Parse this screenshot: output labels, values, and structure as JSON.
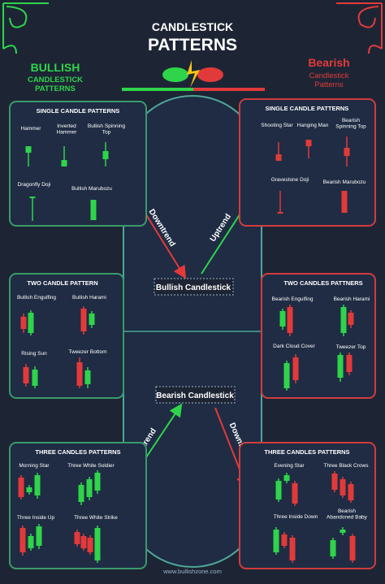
{
  "header": {
    "title_line1": "CANDLESTICK",
    "title_line2": "PATTERNS",
    "bullish": {
      "title": "BULLISH",
      "subtitle": "CANDLESTICK PATTERNS"
    },
    "bearish": {
      "title": "Bearish",
      "subtitle": "Candlestick Patterns"
    }
  },
  "center": {
    "upper": {
      "left_arrow": "Downtrend",
      "right_arrow": "Uptrend",
      "box": "Bullish Candlestick"
    },
    "lower": {
      "left_arrow": "Uptrend",
      "right_arrow": "Downtrend",
      "box": "Bearish Candlestick"
    }
  },
  "panels": [
    {
      "title": "SINGLE CANDLE PATTERNS",
      "items": [
        "Hammer",
        "Inverted Hammer",
        "Bullish Spinning Top",
        "Dragonfly Doji",
        "Bullish Marubozu"
      ]
    },
    {
      "title": "SINGLE CANDLE PATTERNS",
      "items": [
        "Shooting Star",
        "Hanging Man",
        "Bearish Spinning Top",
        "Gravestone Doji",
        "Bearish Marubozu"
      ]
    },
    {
      "title": "TWO CANDLE PATTERN",
      "items": [
        "Bullish Engulfing",
        "Bullish Harami",
        "Rising Sun",
        "Tweezer Bottom"
      ]
    },
    {
      "title": "TWO CANDLES PATTNERS",
      "items": [
        "Bearish Engulfing",
        "Bearish Harami",
        "Dark Cloud Cover",
        "Tweezer Top"
      ]
    },
    {
      "title": "THREE CANDLES PATTERNS",
      "items": [
        "Morning Star",
        "Three White Soldier",
        "Three Inside Up",
        "Three White Strike"
      ]
    },
    {
      "title": "THREE CANDLES PATTERNS",
      "items": [
        "Evening Star",
        "Three Black Crows",
        "Three Inside Down",
        "Bearish Abandoned Baby"
      ]
    }
  ],
  "footer": "www.bullishzone.com"
}
